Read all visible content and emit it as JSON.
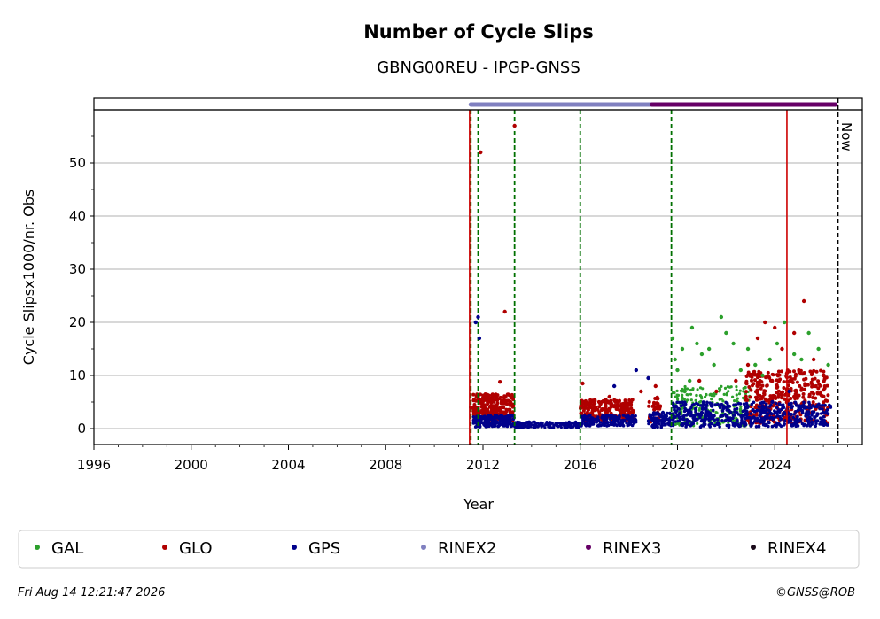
{
  "chart_data": {
    "type": "scatter",
    "title": "Number of Cycle Slips",
    "subtitle": "GBNG00REU - IPGP-GNSS",
    "xlabel": "Year",
    "ylabel": "Cycle Slipsx1000/nr. Obs",
    "xlim": [
      1996,
      2027.6
    ],
    "ylim": [
      -3,
      60
    ],
    "xticks": [
      "1996",
      "2000",
      "2004",
      "2008",
      "2012",
      "2016",
      "2020",
      "2024"
    ],
    "yticks": [
      "0",
      "10",
      "20",
      "30",
      "40",
      "50"
    ],
    "grid": "horizontal",
    "now_label": "Now",
    "now_date": 2026.6,
    "station_events": {
      "equipment_changes": [
        2011.5,
        2011.8,
        2013.3,
        2016.0,
        2019.75
      ],
      "red_events": [
        2011.45,
        2024.5
      ]
    },
    "rinex_bar": [
      {
        "name": "RINEX2",
        "start": 2011.5,
        "end": 2018.95
      },
      {
        "name": "RINEX3",
        "start": 2018.95,
        "end": 2026.5
      }
    ],
    "series": [
      {
        "name": "GAL",
        "color": "#2ca02c",
        "x": [
          2019.8,
          2019.9,
          2020.0,
          2020.2,
          2020.3,
          2020.5,
          2020.6,
          2020.8,
          2021.0,
          2021.3,
          2021.5,
          2021.8,
          2022.0,
          2022.3,
          2022.6,
          2022.9,
          2023.2,
          2023.5,
          2023.8,
          2024.1,
          2024.4,
          2024.8,
          2025.1,
          2025.4,
          2025.8,
          2026.2
        ],
        "y": [
          17,
          13,
          11,
          15,
          7,
          9,
          19,
          16,
          14,
          15,
          12,
          21,
          18,
          16,
          11,
          15,
          12,
          10,
          13,
          16,
          20,
          14,
          13,
          18,
          15,
          12
        ]
      },
      {
        "name": "GLO",
        "color": "#b00000",
        "x": [
          2011.5,
          2011.9,
          2012.2,
          2012.7,
          2012.9,
          2013.3,
          2016.1,
          2017.2,
          2018.5,
          2019.1,
          2020.9,
          2021.6,
          2022.4,
          2022.9,
          2023.3,
          2023.6,
          2024.0,
          2024.3,
          2024.8,
          2025.2,
          2025.6,
          2026.0
        ],
        "y": [
          4,
          52,
          5,
          8.8,
          22,
          57,
          8.5,
          6,
          7,
          8,
          9,
          7,
          9,
          12,
          17,
          20,
          19,
          15,
          18,
          24,
          13,
          10
        ]
      },
      {
        "name": "GPS",
        "color": "#00008b",
        "x": [
          2011.7,
          2011.8,
          2011.85,
          2012.3,
          2013.0,
          2013.9,
          2014.6,
          2015.4,
          2016.5,
          2017.4,
          2018.3,
          2018.8,
          2019.4,
          2020.1,
          2021.0,
          2022.0,
          2023.1,
          2023.9,
          2024.6,
          2025.3,
          2026.0
        ],
        "y": [
          20,
          21,
          17,
          2,
          1,
          1.2,
          0.8,
          1,
          1.5,
          8,
          11,
          9.5,
          3,
          2,
          3,
          4,
          3.5,
          5,
          7,
          4,
          3
        ]
      },
      {
        "name": "RINEX2",
        "color": "#8080c0",
        "x": [],
        "y": []
      },
      {
        "name": "RINEX3",
        "color": "#660066",
        "x": [],
        "y": []
      },
      {
        "name": "RINEX4",
        "color": "#1a0a1a",
        "x": [],
        "y": []
      }
    ]
  },
  "footer": {
    "timestamp": "Fri Aug 14 12:21:47 2026",
    "credit": "©GNSS@ROB"
  }
}
